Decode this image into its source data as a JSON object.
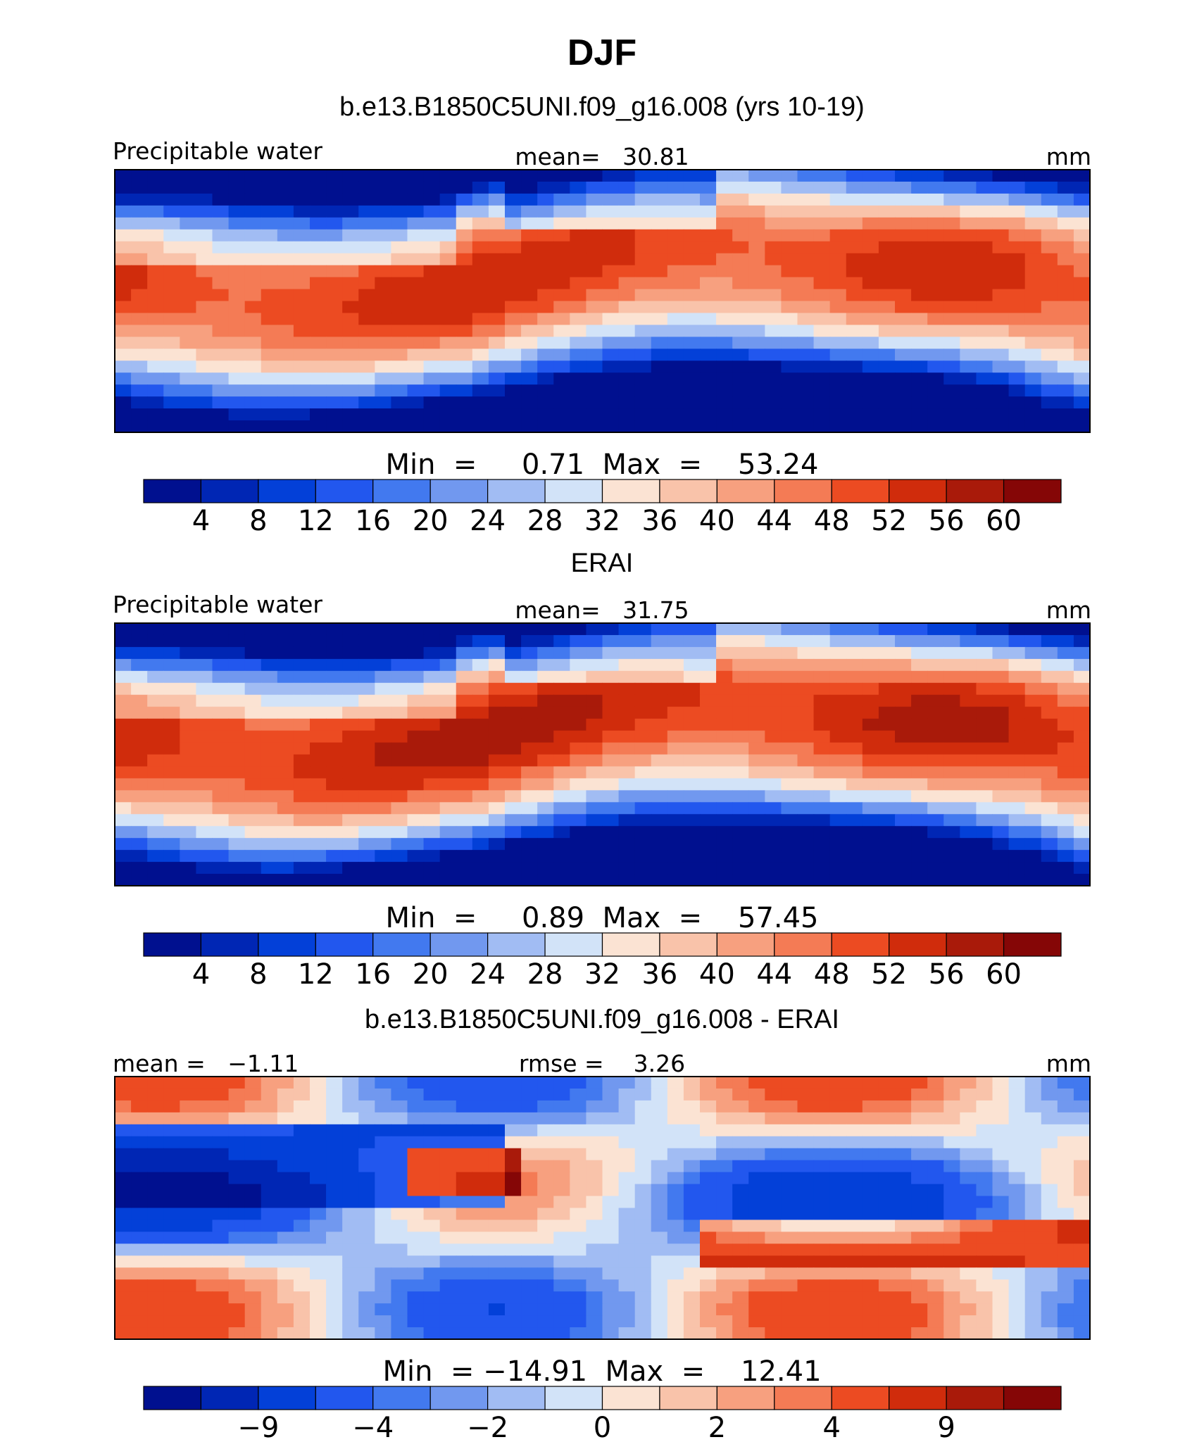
{
  "title": "DJF",
  "colors": {
    "precip": [
      "#00108f",
      "#0026b4",
      "#0340d8",
      "#2257ee",
      "#4279ef",
      "#7198ef",
      "#a1bcf3",
      "#d2e3f8",
      "#fbe3d3",
      "#f9c3aa",
      "#f7a07f",
      "#f47b55",
      "#ec4b22",
      "#d02c0c",
      "#a91a0a",
      "#850606"
    ],
    "diff": [
      "#00108f",
      "#0026b4",
      "#0340d8",
      "#2257ee",
      "#4279ef",
      "#7198ef",
      "#a1bcf3",
      "#d2e3f8",
      "#fbe3d3",
      "#f9c3aa",
      "#f7a07f",
      "#f47b55",
      "#ec4b22",
      "#d02c0c",
      "#a91a0a",
      "#850606"
    ]
  },
  "chart_data": [
    {
      "type": "heatmap",
      "title": "b.e13.B1850C5UNI.f09_g16.008 (yrs 10-19)",
      "left_label": "Precipitable water",
      "center_label": "mean=   30.81",
      "right_label": "mm",
      "variable": "Precipitable water",
      "units": "mm",
      "mean": 30.81,
      "min": 0.71,
      "max": 53.24,
      "stats_label": "Min  =     0.71  Max  =    53.24",
      "levels": [
        4,
        8,
        12,
        16,
        20,
        24,
        28,
        32,
        36,
        40,
        44,
        48,
        52,
        56,
        60
      ],
      "colorbar_ticks": [
        "4",
        "8",
        "12",
        "16",
        "20",
        "24",
        "28",
        "32",
        "36",
        "40",
        "44",
        "48",
        "52",
        "56",
        "60"
      ],
      "colormap": "precip"
    },
    {
      "type": "heatmap",
      "title": "ERAI",
      "left_label": "Precipitable water",
      "center_label": "mean=   31.75",
      "right_label": "mm",
      "variable": "Precipitable water",
      "units": "mm",
      "mean": 31.75,
      "min": 0.89,
      "max": 57.45,
      "stats_label": "Min  =     0.89  Max  =    57.45",
      "levels": [
        4,
        8,
        12,
        16,
        20,
        24,
        28,
        32,
        36,
        40,
        44,
        48,
        52,
        56,
        60
      ],
      "colorbar_ticks": [
        "4",
        "8",
        "12",
        "16",
        "20",
        "24",
        "28",
        "32",
        "36",
        "40",
        "44",
        "48",
        "52",
        "56",
        "60"
      ],
      "colormap": "precip"
    },
    {
      "type": "heatmap",
      "title": "b.e13.B1850C5UNI.f09_g16.008 - ERAI",
      "left_label": "mean =   −1.11",
      "center_label": "rmse =    3.26",
      "right_label": "mm",
      "units": "mm",
      "mean": -1.11,
      "rmse": 3.26,
      "min": -14.91,
      "max": 12.41,
      "stats_label": "Min  = −14.91  Max  =    12.41",
      "levels": [
        -12,
        -9,
        -6,
        -4,
        -3,
        -2,
        -1,
        0,
        1,
        2,
        3,
        4,
        6,
        9,
        12
      ],
      "colorbar_ticks": [
        "−9",
        "−4",
        "−2",
        "0",
        "2",
        "4",
        "9"
      ],
      "colormap": "diff"
    }
  ]
}
